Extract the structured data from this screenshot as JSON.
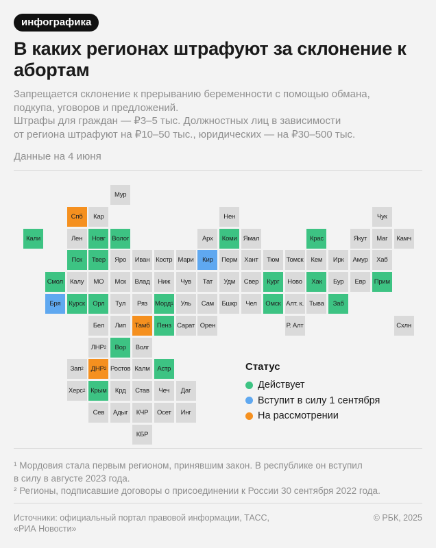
{
  "badge": "инфографика",
  "title": "В каких регионах штрафуют за склонение к абортам",
  "lead": [
    "Запрещается склонение к прерыванию беременности с помощью обмана,",
    "подкупа, уговоров и предложений.",
    "Штрафы для граждан — ₽3–5 тыс. Должностных лиц в зависимости",
    "от региона штрафуют на ₽10–50 тыс., юридических — на ₽30–500 тыс."
  ],
  "date_note": "Данные на 4 июня",
  "legend": {
    "title": "Статус",
    "items": [
      {
        "key": "active",
        "label": "Действует"
      },
      {
        "key": "upcoming",
        "label": "Вступит в силу 1 сентября"
      },
      {
        "key": "review",
        "label": "На рассмотрении"
      }
    ]
  },
  "colors": {
    "active": "#3dc383",
    "upcoming": "#5fa8f0",
    "review": "#f5901f",
    "none": "#dadada",
    "background": "#f3f3f3"
  },
  "chart_data": {
    "type": "table",
    "title": "В каких регионах штрафуют за склонение к абортам",
    "legend_position": "bottom-right",
    "regions": [
      {
        "label": "Мур",
        "row": 0,
        "col": 4,
        "status": "none"
      },
      {
        "label": "Спб",
        "row": 1,
        "col": 2,
        "status": "review"
      },
      {
        "label": "Кар",
        "row": 1,
        "col": 3,
        "status": "none"
      },
      {
        "label": "Нен",
        "row": 1,
        "col": 9,
        "status": "none"
      },
      {
        "label": "Чук",
        "row": 1,
        "col": 16,
        "status": "none"
      },
      {
        "label": "Кали",
        "row": 2,
        "col": 0,
        "status": "active"
      },
      {
        "label": "Лен",
        "row": 2,
        "col": 2,
        "status": "none"
      },
      {
        "label": "Новг",
        "row": 2,
        "col": 3,
        "status": "active"
      },
      {
        "label": "Волог",
        "row": 2,
        "col": 4,
        "status": "active"
      },
      {
        "label": "Арх",
        "row": 2,
        "col": 8,
        "status": "none"
      },
      {
        "label": "Коми",
        "row": 2,
        "col": 9,
        "status": "active"
      },
      {
        "label": "Ямал",
        "row": 2,
        "col": 10,
        "status": "none"
      },
      {
        "label": "Крас",
        "row": 2,
        "col": 13,
        "status": "active"
      },
      {
        "label": "Якут",
        "row": 2,
        "col": 15,
        "status": "none"
      },
      {
        "label": "Маг",
        "row": 2,
        "col": 16,
        "status": "none"
      },
      {
        "label": "Камч",
        "row": 2,
        "col": 17,
        "status": "none"
      },
      {
        "label": "Пск",
        "row": 3,
        "col": 2,
        "status": "active"
      },
      {
        "label": "Твер",
        "row": 3,
        "col": 3,
        "status": "active"
      },
      {
        "label": "Яро",
        "row": 3,
        "col": 4,
        "status": "none"
      },
      {
        "label": "Иван",
        "row": 3,
        "col": 5,
        "status": "none"
      },
      {
        "label": "Костр",
        "row": 3,
        "col": 6,
        "status": "none"
      },
      {
        "label": "Мари",
        "row": 3,
        "col": 7,
        "status": "none"
      },
      {
        "label": "Кир",
        "row": 3,
        "col": 8,
        "status": "upcoming"
      },
      {
        "label": "Перм",
        "row": 3,
        "col": 9,
        "status": "none"
      },
      {
        "label": "Хант",
        "row": 3,
        "col": 10,
        "status": "none"
      },
      {
        "label": "Тюм",
        "row": 3,
        "col": 11,
        "status": "none"
      },
      {
        "label": "Томск",
        "row": 3,
        "col": 12,
        "status": "none"
      },
      {
        "label": "Кем",
        "row": 3,
        "col": 13,
        "status": "none"
      },
      {
        "label": "Ирк",
        "row": 3,
        "col": 14,
        "status": "none"
      },
      {
        "label": "Амур",
        "row": 3,
        "col": 15,
        "status": "none"
      },
      {
        "label": "Хаб",
        "row": 3,
        "col": 16,
        "status": "none"
      },
      {
        "label": "Смол",
        "row": 4,
        "col": 1,
        "status": "active"
      },
      {
        "label": "Калу",
        "row": 4,
        "col": 2,
        "status": "none"
      },
      {
        "label": "МО",
        "row": 4,
        "col": 3,
        "status": "none"
      },
      {
        "label": "Мск",
        "row": 4,
        "col": 4,
        "status": "none"
      },
      {
        "label": "Влад",
        "row": 4,
        "col": 5,
        "status": "none"
      },
      {
        "label": "Ниж",
        "row": 4,
        "col": 6,
        "status": "none"
      },
      {
        "label": "Чув",
        "row": 4,
        "col": 7,
        "status": "none"
      },
      {
        "label": "Тат",
        "row": 4,
        "col": 8,
        "status": "none"
      },
      {
        "label": "Удм",
        "row": 4,
        "col": 9,
        "status": "none"
      },
      {
        "label": "Свер",
        "row": 4,
        "col": 10,
        "status": "none"
      },
      {
        "label": "Кург",
        "row": 4,
        "col": 11,
        "status": "active"
      },
      {
        "label": "Ново",
        "row": 4,
        "col": 12,
        "status": "none"
      },
      {
        "label": "Хак",
        "row": 4,
        "col": 13,
        "status": "active"
      },
      {
        "label": "Бур",
        "row": 4,
        "col": 14,
        "status": "none"
      },
      {
        "label": "Евр",
        "row": 4,
        "col": 15,
        "status": "none"
      },
      {
        "label": "Прим",
        "row": 4,
        "col": 16,
        "status": "active"
      },
      {
        "label": "Бря",
        "row": 5,
        "col": 1,
        "status": "upcoming"
      },
      {
        "label": "Курск",
        "row": 5,
        "col": 2,
        "status": "active"
      },
      {
        "label": "Орл",
        "row": 5,
        "col": 3,
        "status": "active"
      },
      {
        "label": "Тул",
        "row": 5,
        "col": 4,
        "status": "none"
      },
      {
        "label": "Ряз",
        "row": 5,
        "col": 5,
        "status": "none"
      },
      {
        "label": "Морд",
        "sup": "1",
        "row": 5,
        "col": 6,
        "status": "active"
      },
      {
        "label": "Уль",
        "row": 5,
        "col": 7,
        "status": "none"
      },
      {
        "label": "Сам",
        "row": 5,
        "col": 8,
        "status": "none"
      },
      {
        "label": "Бшкр",
        "row": 5,
        "col": 9,
        "status": "none"
      },
      {
        "label": "Чел",
        "row": 5,
        "col": 10,
        "status": "none"
      },
      {
        "label": "Омск",
        "row": 5,
        "col": 11,
        "status": "active"
      },
      {
        "label": "Алт. к.",
        "row": 5,
        "col": 12,
        "status": "none"
      },
      {
        "label": "Тыва",
        "row": 5,
        "col": 13,
        "status": "none"
      },
      {
        "label": "Заб",
        "row": 5,
        "col": 14,
        "status": "active"
      },
      {
        "label": "Бел",
        "row": 6,
        "col": 3,
        "status": "none"
      },
      {
        "label": "Лип",
        "row": 6,
        "col": 4,
        "status": "none"
      },
      {
        "label": "Тамб",
        "row": 6,
        "col": 5,
        "status": "review"
      },
      {
        "label": "Пенз",
        "row": 6,
        "col": 6,
        "status": "active"
      },
      {
        "label": "Сарат",
        "row": 6,
        "col": 7,
        "status": "none"
      },
      {
        "label": "Орен",
        "row": 6,
        "col": 8,
        "status": "none"
      },
      {
        "label": "Р. Алт",
        "row": 6,
        "col": 12,
        "status": "none"
      },
      {
        "label": "Схлн",
        "row": 6,
        "col": 17,
        "status": "none"
      },
      {
        "label": "ЛНР",
        "sup": "2",
        "row": 7,
        "col": 3,
        "status": "none"
      },
      {
        "label": "Вор",
        "row": 7,
        "col": 4,
        "status": "active"
      },
      {
        "label": "Волг",
        "row": 7,
        "col": 5,
        "status": "none"
      },
      {
        "label": "Зап",
        "sup": "2",
        "row": 8,
        "col": 2,
        "status": "none"
      },
      {
        "label": "ДНР",
        "sup": "2",
        "row": 8,
        "col": 3,
        "status": "review"
      },
      {
        "label": "Ростов",
        "row": 8,
        "col": 4,
        "status": "none"
      },
      {
        "label": "Калм",
        "row": 8,
        "col": 5,
        "status": "none"
      },
      {
        "label": "Астр",
        "row": 8,
        "col": 6,
        "status": "active"
      },
      {
        "label": "Херс",
        "sup": "2",
        "row": 9,
        "col": 2,
        "status": "none"
      },
      {
        "label": "Крым",
        "row": 9,
        "col": 3,
        "status": "active"
      },
      {
        "label": "Крд",
        "row": 9,
        "col": 4,
        "status": "none"
      },
      {
        "label": "Став",
        "row": 9,
        "col": 5,
        "status": "none"
      },
      {
        "label": "Чеч",
        "row": 9,
        "col": 6,
        "status": "none"
      },
      {
        "label": "Даг",
        "row": 9,
        "col": 7,
        "status": "none"
      },
      {
        "label": "Сев",
        "row": 10,
        "col": 3,
        "status": "none"
      },
      {
        "label": "Адыг",
        "row": 10,
        "col": 4,
        "status": "none"
      },
      {
        "label": "КЧР",
        "row": 10,
        "col": 5,
        "status": "none"
      },
      {
        "label": "Осет",
        "row": 10,
        "col": 6,
        "status": "none"
      },
      {
        "label": "Инг",
        "row": 10,
        "col": 7,
        "status": "none"
      },
      {
        "label": "КБР",
        "row": 11,
        "col": 5,
        "status": "none"
      }
    ]
  },
  "footnotes": [
    "¹ Мордовия стала первым регионом, принявшим закон. В республике он вступил",
    "в силу в августе 2023 года.",
    "² Регионы, подписавшие договоры о присоединении к России 30 сентября 2022 года."
  ],
  "source": [
    "Источники: официальный портал правовой информации, ТАСС,",
    "«РИА Новости»"
  ],
  "copyright": "© РБК, 2025"
}
